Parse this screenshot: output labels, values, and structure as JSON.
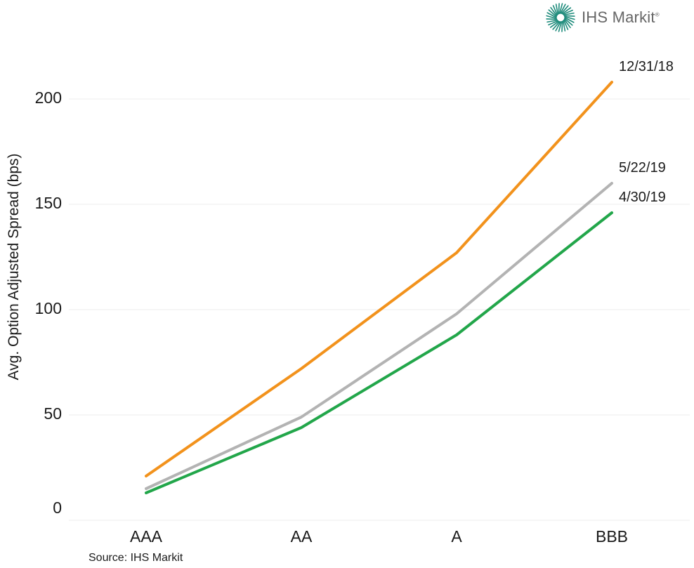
{
  "brand": {
    "name": "IHS Markit",
    "reg": "®",
    "accent": "#1b8a7a"
  },
  "source": "Source: IHS Markit",
  "chart_data": {
    "type": "line",
    "title": "",
    "xlabel": "",
    "ylabel": "Avg. Option Adjusted Spread (bps)",
    "categories": [
      "AAA",
      "AA",
      "A",
      "BBB"
    ],
    "ylim": [
      0,
      200
    ],
    "yticks": [
      0,
      50,
      100,
      150,
      200
    ],
    "grid": true,
    "series": [
      {
        "name": "12/31/18",
        "color": "#f2921c",
        "values": [
          21,
          72,
          127,
          208
        ]
      },
      {
        "name": "5/22/19",
        "color": "#b3b3b3",
        "values": [
          15,
          49,
          98,
          160
        ]
      },
      {
        "name": "4/30/19",
        "color": "#22a64a",
        "values": [
          13,
          44,
          88,
          146
        ]
      }
    ]
  }
}
